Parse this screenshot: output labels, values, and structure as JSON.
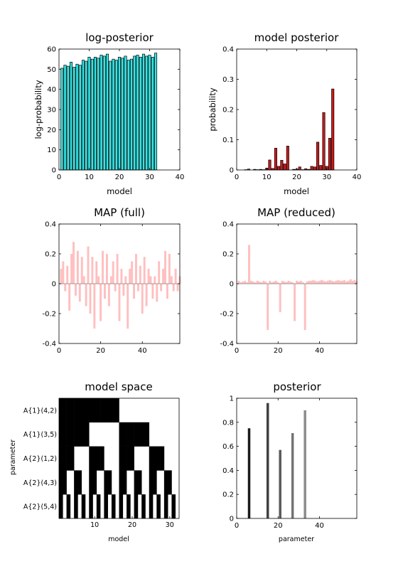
{
  "chart_data": [
    {
      "id": "c1",
      "type": "bar",
      "title": "log-posterior",
      "xlabel": "model",
      "ylabel": "log-probability",
      "xlim": [
        0,
        40
      ],
      "ylim": [
        0,
        60
      ],
      "xticks": [
        0,
        10,
        20,
        30,
        40
      ],
      "yticks": [
        0,
        10,
        20,
        30,
        40,
        50,
        60
      ],
      "bar_color": "#33e6e6",
      "x": [
        1,
        2,
        3,
        4,
        5,
        6,
        7,
        8,
        9,
        10,
        11,
        12,
        13,
        14,
        15,
        16,
        17,
        18,
        19,
        20,
        21,
        22,
        23,
        24,
        25,
        26,
        27,
        28,
        29,
        30,
        31,
        32
      ],
      "values": [
        50.5,
        52,
        51.5,
        53.5,
        51,
        52.5,
        52,
        54.5,
        54,
        56,
        55,
        56,
        55.5,
        57,
        56.5,
        57.5,
        54,
        55,
        54.5,
        56,
        55.5,
        56.5,
        54.5,
        55,
        56.5,
        57,
        56,
        57.5,
        56.5,
        57,
        56,
        58
      ]
    },
    {
      "id": "c2",
      "type": "bar",
      "title": "model posterior",
      "xlabel": "model",
      "ylabel": "probability",
      "xlim": [
        0,
        40
      ],
      "ylim": [
        0,
        0.4
      ],
      "xticks": [
        0,
        10,
        20,
        30,
        40
      ],
      "yticks": [
        0,
        0.1,
        0.2,
        0.3,
        0.4
      ],
      "bar_color": "#cc1a1a",
      "x": [
        1,
        2,
        3,
        4,
        5,
        6,
        7,
        8,
        9,
        10,
        11,
        12,
        13,
        14,
        15,
        16,
        17,
        18,
        19,
        20,
        21,
        22,
        23,
        24,
        25,
        26,
        27,
        28,
        29,
        30,
        31,
        32
      ],
      "values": [
        0,
        0,
        0.001,
        0.003,
        0,
        0.002,
        0.001,
        0.002,
        0.001,
        0.006,
        0.033,
        0.005,
        0.072,
        0.012,
        0.032,
        0.02,
        0.079,
        0,
        0.002,
        0.003,
        0.01,
        0.001,
        0.004,
        0.002,
        0.012,
        0.01,
        0.092,
        0.015,
        0.19,
        0.012,
        0.105,
        0.268
      ]
    },
    {
      "id": "c3",
      "type": "bar",
      "title": "MAP (full)",
      "xlim": [
        0,
        58
      ],
      "ylim": [
        -0.4,
        0.4
      ],
      "xticks": [
        0,
        20,
        40
      ],
      "yticks": [
        -0.4,
        -0.2,
        0,
        0.2,
        0.4
      ],
      "bar_color": "#ffbfbf",
      "values": [
        0.1,
        0.15,
        -0.05,
        0.12,
        -0.18,
        0.2,
        0.28,
        -0.08,
        0.22,
        -0.12,
        0.18,
        0.05,
        -0.15,
        0.25,
        -0.2,
        0.18,
        -0.3,
        0.15,
        0.05,
        -0.25,
        0.22,
        -0.1,
        0.2,
        -0.15,
        0.05,
        0.15,
        -0.05,
        0.2,
        -0.25,
        0.1,
        -0.08,
        0.05,
        -0.3,
        0.1,
        0.15,
        -0.1,
        0.2,
        -0.05,
        0.12,
        -0.2,
        0.18,
        -0.15,
        0.1,
        0.05,
        -0.1,
        0.05,
        -0.12,
        0.15,
        -0.05,
        0.1,
        0.22,
        -0.1,
        0.2,
        0.05,
        -0.05,
        0.1,
        -0.05,
        0.05
      ]
    },
    {
      "id": "c4",
      "type": "bar",
      "title": "MAP (reduced)",
      "xlim": [
        0,
        58
      ],
      "ylim": [
        -0.4,
        0.4
      ],
      "xticks": [
        0,
        20,
        40
      ],
      "yticks": [
        -0.4,
        -0.2,
        0,
        0.2,
        0.4
      ],
      "bar_color": "#ffbfbf",
      "values": [
        0.02,
        0.01,
        0.015,
        0.02,
        0.01,
        0.26,
        0.02,
        0.015,
        0.01,
        0.02,
        0.015,
        0.01,
        0.02,
        0.015,
        -0.31,
        0.02,
        0.01,
        0.015,
        0.02,
        0.01,
        -0.19,
        0.02,
        0.015,
        0.01,
        0.02,
        0.015,
        0.01,
        -0.25,
        0.02,
        0.015,
        0.02,
        0.01,
        -0.31,
        0.015,
        0.02,
        0.02,
        0.025,
        0.02,
        0.015,
        0.02,
        0.025,
        0.02,
        0.015,
        0.02,
        0.025,
        0.02,
        0.015,
        0.02,
        0.025,
        0.02,
        0.02,
        0.025,
        0.015,
        0.02,
        0.03,
        0.02,
        0.025,
        0.015
      ]
    },
    {
      "id": "c5",
      "type": "heatmap",
      "title": "model space",
      "xlabel": "model",
      "ylabel": "parameter",
      "xlim": [
        0.5,
        32.5
      ],
      "xticks": [
        10,
        20,
        30
      ],
      "ytick_labels": [
        "A{1}(4,2)",
        "A{1}(3,5)",
        "A{2}(1,2)",
        "A{2}(4,3)",
        "A{2}(5,4)"
      ],
      "cells": "black/white pattern; black cell = parameter on in model"
    },
    {
      "id": "c6",
      "type": "bar",
      "title": "posterior",
      "xlabel": "parameter",
      "xlim": [
        0,
        58
      ],
      "ylim": [
        0,
        1
      ],
      "xticks": [
        0,
        20,
        40
      ],
      "yticks": [
        0,
        0.2,
        0.4,
        0.6,
        0.8,
        1
      ],
      "x": [
        6,
        15,
        21,
        27,
        33
      ],
      "values": [
        0.75,
        0.96,
        0.57,
        0.71,
        0.9
      ],
      "colors": [
        "#1a1a1a",
        "#404040",
        "#595959",
        "#737373",
        "#8c8c8c"
      ]
    }
  ]
}
